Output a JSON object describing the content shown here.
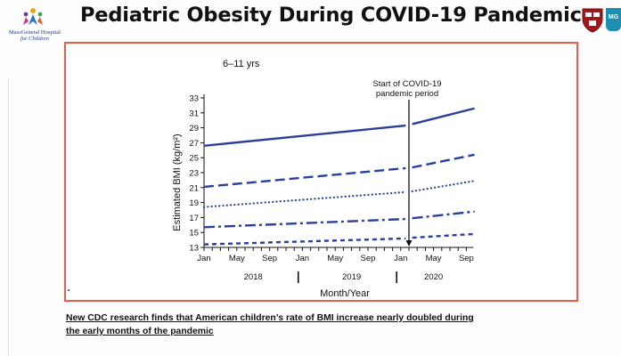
{
  "header": {
    "title": "Pediatric Obesity During COVID-19 Pandemic",
    "logo_line1": "MassGeneral Hospital",
    "logo_line2": "for Children",
    "mgh_badge": "MG",
    "colors": {
      "title": "#111111",
      "frame": "#e85c4a",
      "line": "#2a3f9e",
      "shield": "#a4161a",
      "mgh": "#1d8fb0"
    }
  },
  "chart_data": {
    "type": "line",
    "panel_label": "6–11 yrs",
    "ylabel": "Estimated BMI (kg/m²)",
    "xlabel": "Month/Year",
    "ylim": [
      13,
      33
    ],
    "yticks": [
      13,
      15,
      17,
      19,
      21,
      23,
      25,
      27,
      29,
      31,
      33
    ],
    "x_months_range": [
      0,
      32
    ],
    "x_tick_labels": [
      {
        "m": 0,
        "label": "Jan"
      },
      {
        "m": 4,
        "label": "May"
      },
      {
        "m": 8,
        "label": "Sep"
      },
      {
        "m": 12,
        "label": "Jan"
      },
      {
        "m": 16,
        "label": "May"
      },
      {
        "m": 20,
        "label": "Sep"
      },
      {
        "m": 24,
        "label": "Jan"
      },
      {
        "m": 28,
        "label": "May"
      },
      {
        "m": 32,
        "label": "Sep"
      }
    ],
    "year_labels": [
      {
        "center": 6,
        "label": "2018"
      },
      {
        "center": 18,
        "label": "2019"
      },
      {
        "center": 28,
        "label": "2020"
      }
    ],
    "year_dividers": [
      11.5,
      23.5
    ],
    "pandemic_annotation": {
      "m": 25,
      "text_line1": "Start of COVID-19",
      "text_line2": "pandemic period"
    },
    "series": [
      {
        "style": "solid",
        "pre": [
          [
            0,
            26.6
          ],
          [
            24.6,
            29.3
          ]
        ],
        "post": [
          [
            25.4,
            29.5
          ],
          [
            33,
            31.6
          ]
        ]
      },
      {
        "style": "dash",
        "pre": [
          [
            0,
            21.1
          ],
          [
            24.6,
            23.6
          ]
        ],
        "post": [
          [
            25.4,
            23.7
          ],
          [
            33,
            25.4
          ]
        ]
      },
      {
        "style": "dot",
        "pre": [
          [
            0,
            18.4
          ],
          [
            24.6,
            20.4
          ]
        ],
        "post": [
          [
            25.4,
            20.5
          ],
          [
            33,
            21.9
          ]
        ]
      },
      {
        "style": "dashdot",
        "pre": [
          [
            0,
            15.7
          ],
          [
            24.6,
            16.8
          ]
        ],
        "post": [
          [
            25.4,
            16.9
          ],
          [
            33,
            17.8
          ]
        ]
      },
      {
        "style": "shortdash",
        "pre": [
          [
            0,
            13.4
          ],
          [
            24.6,
            14.2
          ]
        ],
        "post": [
          [
            25.4,
            14.3
          ],
          [
            33,
            14.8
          ]
        ]
      }
    ]
  },
  "footnote": {
    "line1": "New CDC research finds that American children’s rate of BMI increase nearly doubled during",
    "line2": "the early months of the pandemic"
  }
}
